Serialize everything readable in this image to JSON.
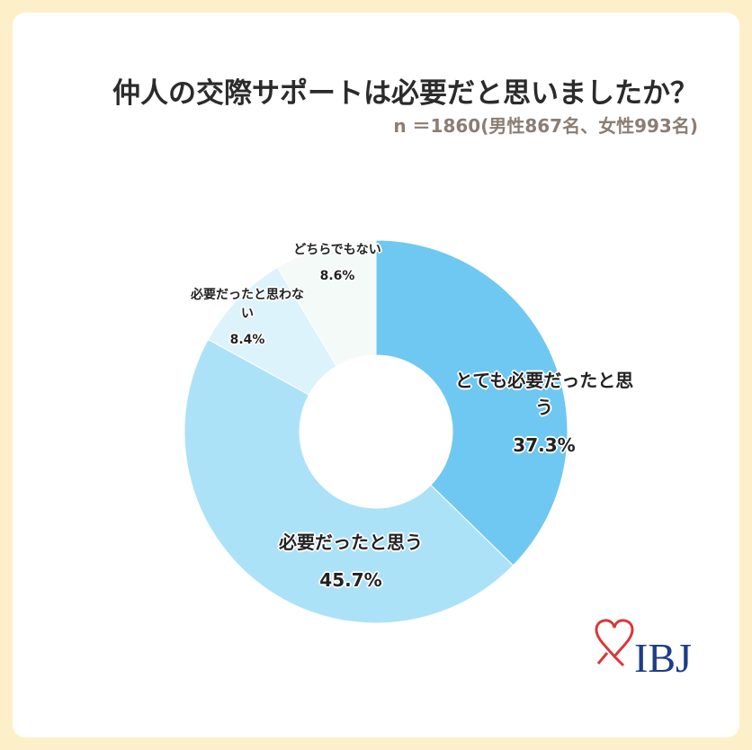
{
  "chart_data": {
    "type": "donut",
    "title": "仲人の交際サポートは必要だと思いましたか？",
    "subtitle": "n ＝1860(男性867名、女性993名)",
    "categories": [
      "とても必要だったと思う",
      "必要だったと思う",
      "必要だったと思わない",
      "どちらでもない"
    ],
    "values": [
      37.3,
      45.7,
      8.4,
      8.6
    ],
    "value_labels": [
      "37.3%",
      "45.7%",
      "8.4%",
      "8.6%"
    ],
    "colors": [
      "#6ec8f2",
      "#ace2f8",
      "#ddf3fb",
      "#f3faf8"
    ],
    "logo": "IBJ"
  }
}
